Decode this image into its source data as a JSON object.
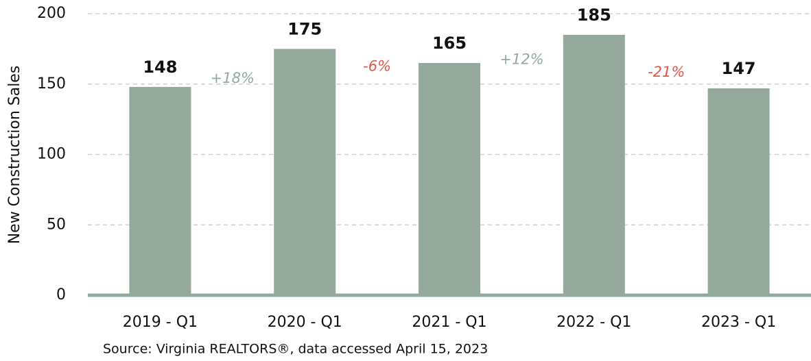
{
  "chart_data": {
    "type": "bar",
    "y_label": "New Construction Sales",
    "categories": [
      "2019 - Q1",
      "2020 - Q1",
      "2021 - Q1",
      "2022 - Q1",
      "2023 - Q1"
    ],
    "values": [
      148,
      175,
      165,
      185,
      147
    ],
    "color": "#94a99c",
    "ylim": [
      0,
      200
    ],
    "yticks": [
      0,
      50,
      100,
      150,
      200
    ],
    "grid": true,
    "annotations": [
      {
        "text": "+18%",
        "color": "#94a99c"
      },
      {
        "text": "-6%",
        "color": "#e0574a"
      },
      {
        "text": "+12%",
        "color": "#94a99c"
      },
      {
        "text": "-21%",
        "color": "#e0574a"
      }
    ],
    "source": "Source: Virginia REALTORS®, data accessed April 15, 2023"
  }
}
